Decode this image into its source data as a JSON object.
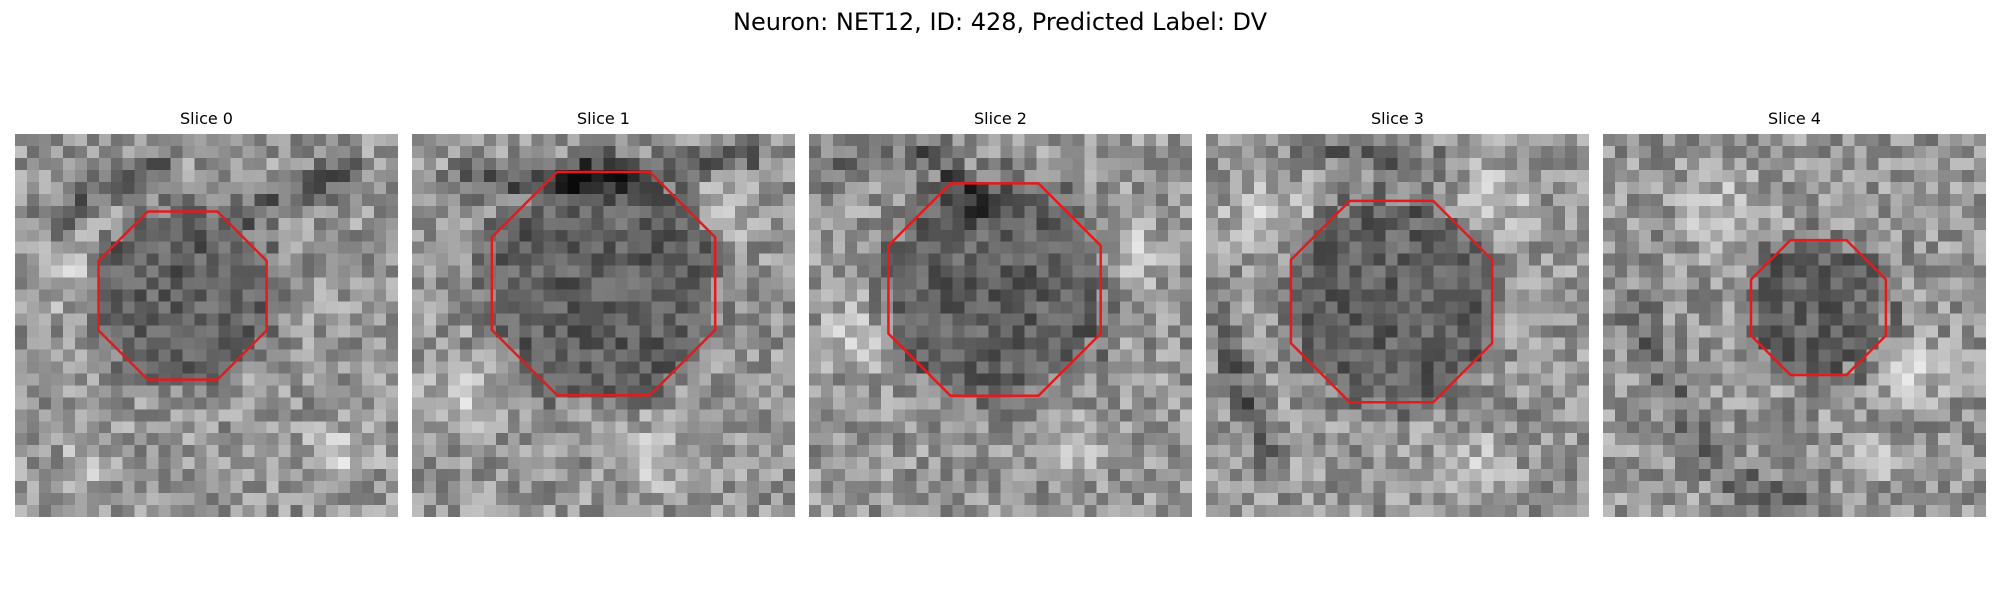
{
  "figure": {
    "title": "Neuron: NET12, ID: 428, Predicted Label: DV"
  },
  "panels": [
    {
      "title": "Slice 0"
    },
    {
      "title": "Slice 1"
    },
    {
      "title": "Slice 2"
    },
    {
      "title": "Slice 3"
    },
    {
      "title": "Slice 4"
    }
  ],
  "colors": {
    "contour": "#e41a1c",
    "background": "#ffffff"
  }
}
